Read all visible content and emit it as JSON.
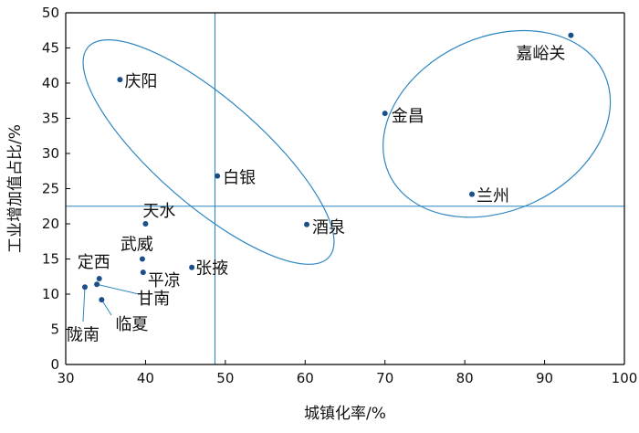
{
  "chart_data": {
    "type": "scatter",
    "xlabel": "城镇化率/%",
    "ylabel": "工业增加值占比/%",
    "xlim": [
      30,
      100
    ],
    "ylim": [
      0,
      50
    ],
    "x_ticks": [
      30,
      40,
      50,
      60,
      70,
      80,
      90,
      100
    ],
    "y_ticks": [
      0,
      5,
      10,
      15,
      20,
      25,
      30,
      35,
      40,
      45,
      50
    ],
    "grid": false,
    "reference_lines": {
      "x": 48.7,
      "y": 22.5
    },
    "points": [
      {
        "label": "嘉峪关",
        "x": 93.3,
        "y": 46.8
      },
      {
        "label": "金昌",
        "x": 70.0,
        "y": 35.7
      },
      {
        "label": "兰州",
        "x": 80.9,
        "y": 24.2
      },
      {
        "label": "庆阳",
        "x": 36.8,
        "y": 40.5
      },
      {
        "label": "白银",
        "x": 49.0,
        "y": 26.8
      },
      {
        "label": "酒泉",
        "x": 60.2,
        "y": 19.9
      },
      {
        "label": "天水",
        "x": 40.0,
        "y": 20.0
      },
      {
        "label": "武威",
        "x": 39.6,
        "y": 15.0
      },
      {
        "label": "张掖",
        "x": 45.8,
        "y": 13.8
      },
      {
        "label": "平凉",
        "x": 39.7,
        "y": 13.1
      },
      {
        "label": "定西",
        "x": 34.2,
        "y": 12.2
      },
      {
        "label": "甘南",
        "x": 33.9,
        "y": 11.4
      },
      {
        "label": "陇南",
        "x": 32.4,
        "y": 11.0
      },
      {
        "label": "临夏",
        "x": 34.5,
        "y": 9.2
      }
    ],
    "colors": {
      "point": "#1a4f8a",
      "line": "#2e86c1",
      "axis": "#000000"
    }
  }
}
